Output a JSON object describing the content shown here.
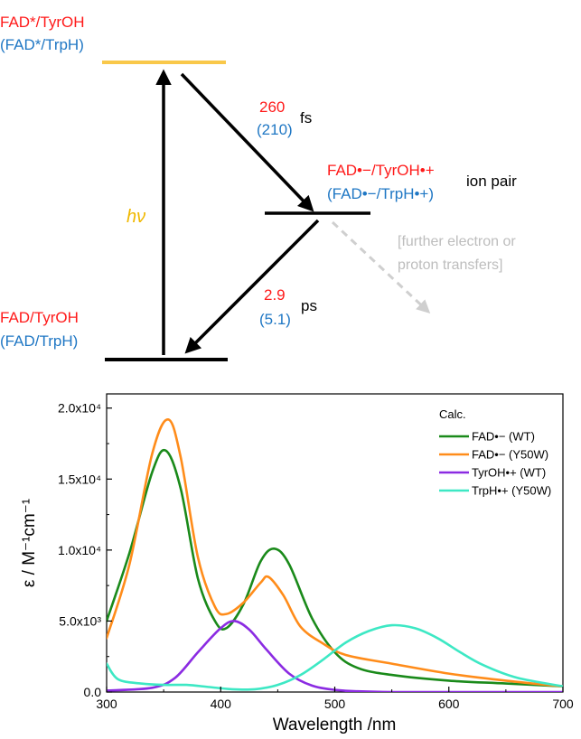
{
  "diagram": {
    "states": {
      "excited": {
        "line1": "FAD*/TyrOH",
        "line2": "(FAD*/TrpH)"
      },
      "ion_pair": {
        "line1": "FAD•−/TyrOH•+",
        "line2": "(FAD•−/TrpH•+)",
        "tag": "ion pair"
      },
      "ground": {
        "line1": "FAD/TyrOH",
        "line2": "(FAD/TrpH)"
      }
    },
    "excitation_label": "hν",
    "forward_et": {
      "value": "260",
      "value_alt": "(210)",
      "unit": "fs"
    },
    "back_et": {
      "value": "2.9",
      "value_alt": "(5.1)",
      "unit": "ps"
    },
    "further_note": {
      "line1": "[further electron or",
      "line2": "proton transfers]"
    },
    "colors": {
      "tyr": "#ff1a1a",
      "trp": "#1f77c4",
      "level_excited": "#f9c84a",
      "hv": "#f0b800",
      "arrow": "#000000",
      "note": "#bdbdbd"
    }
  },
  "chart_data": {
    "type": "line",
    "xlabel": "Wavelength /nm",
    "ylabel": "ε / M⁻¹cm⁻¹",
    "xlim": [
      300,
      700
    ],
    "ylim": [
      0,
      21000
    ],
    "x_ticks": [
      "300",
      "400",
      "500",
      "600",
      "700"
    ],
    "x_tick_values": [
      300,
      400,
      500,
      600,
      700
    ],
    "y_ticks": [
      "0.0",
      "5.0x10³",
      "1.0x10⁴",
      "1.5x10⁴",
      "2.0x10⁴"
    ],
    "y_tick_values": [
      0,
      5000,
      10000,
      15000,
      20000
    ],
    "legend_title": "Calc.",
    "legend_position": "top-right",
    "grid": false,
    "series": [
      {
        "name": "FAD•− (WT)",
        "color": "#1a8a1a",
        "x": [
          300,
          320,
          340,
          352,
          365,
          380,
          395,
          405,
          420,
          435,
          447,
          460,
          480,
          500,
          520,
          550,
          600,
          650,
          700
        ],
        "y": [
          5000,
          9800,
          15500,
          17000,
          14300,
          8000,
          5000,
          4500,
          6200,
          9200,
          10100,
          9000,
          5200,
          2800,
          1700,
          1200,
          800,
          600,
          400
        ]
      },
      {
        "name": "FAD•− (Y50W)",
        "color": "#ff8c1a",
        "x": [
          300,
          320,
          340,
          354,
          365,
          380,
          395,
          405,
          420,
          435,
          442,
          455,
          470,
          490,
          510,
          550,
          600,
          650,
          700
        ],
        "y": [
          3800,
          9000,
          16800,
          19200,
          16500,
          9500,
          6000,
          5500,
          6300,
          7700,
          8100,
          6800,
          4600,
          3400,
          2600,
          2000,
          1300,
          800,
          400
        ]
      },
      {
        "name": "TyrOH•+ (WT)",
        "color": "#8b2be2",
        "x": [
          300,
          340,
          360,
          380,
          400,
          412,
          425,
          440,
          460,
          480,
          500,
          520,
          550,
          600,
          700
        ],
        "y": [
          100,
          300,
          1000,
          2800,
          4500,
          5000,
          4400,
          3000,
          1300,
          450,
          150,
          50,
          0,
          0,
          0
        ]
      },
      {
        "name": "TrpH•+ (Y50W)",
        "color": "#3de8c4",
        "x": [
          300,
          310,
          330,
          350,
          370,
          390,
          410,
          430,
          450,
          470,
          490,
          510,
          530,
          550,
          570,
          590,
          610,
          630,
          660,
          700
        ],
        "y": [
          2000,
          900,
          600,
          500,
          500,
          350,
          200,
          200,
          500,
          1200,
          2300,
          3500,
          4300,
          4700,
          4500,
          3800,
          2800,
          1900,
          1000,
          400
        ]
      }
    ]
  }
}
